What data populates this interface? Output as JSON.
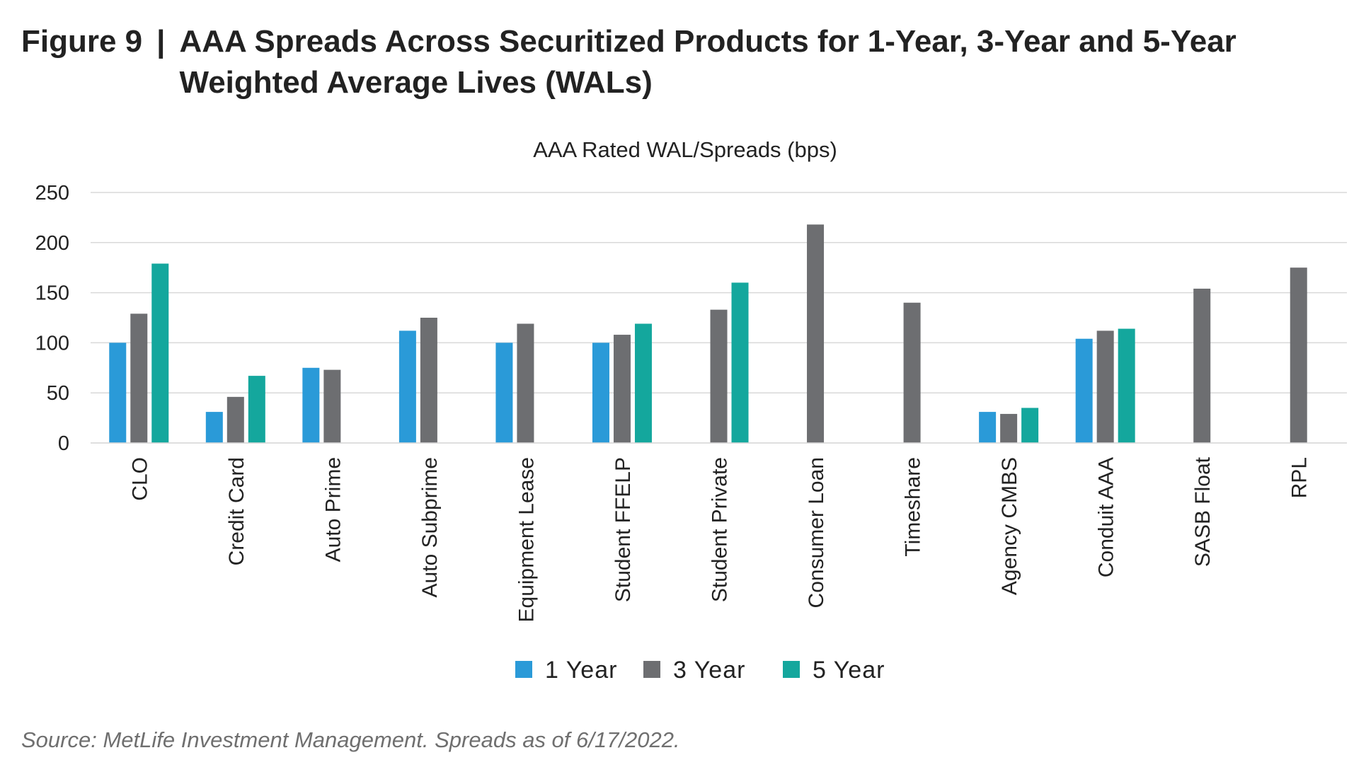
{
  "figure": {
    "label": "Figure 9",
    "separator": "|",
    "title": "AAA Spreads Across Securitized Products for 1-Year, 3-Year and 5-Year Weighted Average Lives (WALs)"
  },
  "source": "Source: MetLife Investment Management. Spreads as of 6/17/2022.",
  "chart_data": {
    "type": "bar",
    "title": "AAA Rated WAL/Spreads (bps)",
    "xlabel": "",
    "ylabel": "",
    "ylim": [
      0,
      250
    ],
    "yticks": [
      0,
      50,
      100,
      150,
      200,
      250
    ],
    "grid": true,
    "legend_position": "bottom",
    "categories": [
      "CLO",
      "Credit Card",
      "Auto Prime",
      "Auto Subprime",
      "Equipment Lease",
      "Student FFELP",
      "Student Private",
      "Consumer Loan",
      "Timeshare",
      "Agency CMBS",
      "Conduit AAA",
      "SASB Float",
      "RPL"
    ],
    "series": [
      {
        "name": "1 Year",
        "color": "#2A9AD8",
        "values": [
          100,
          31,
          75,
          112,
          100,
          100,
          null,
          null,
          null,
          31,
          104,
          null,
          null
        ]
      },
      {
        "name": "3 Year",
        "color": "#6D6E71",
        "values": [
          129,
          46,
          73,
          125,
          119,
          108,
          133,
          218,
          140,
          29,
          112,
          154,
          175
        ]
      },
      {
        "name": "5 Year",
        "color": "#14A79D",
        "values": [
          179,
          67,
          null,
          null,
          null,
          119,
          160,
          null,
          null,
          35,
          114,
          null,
          null
        ]
      }
    ]
  }
}
